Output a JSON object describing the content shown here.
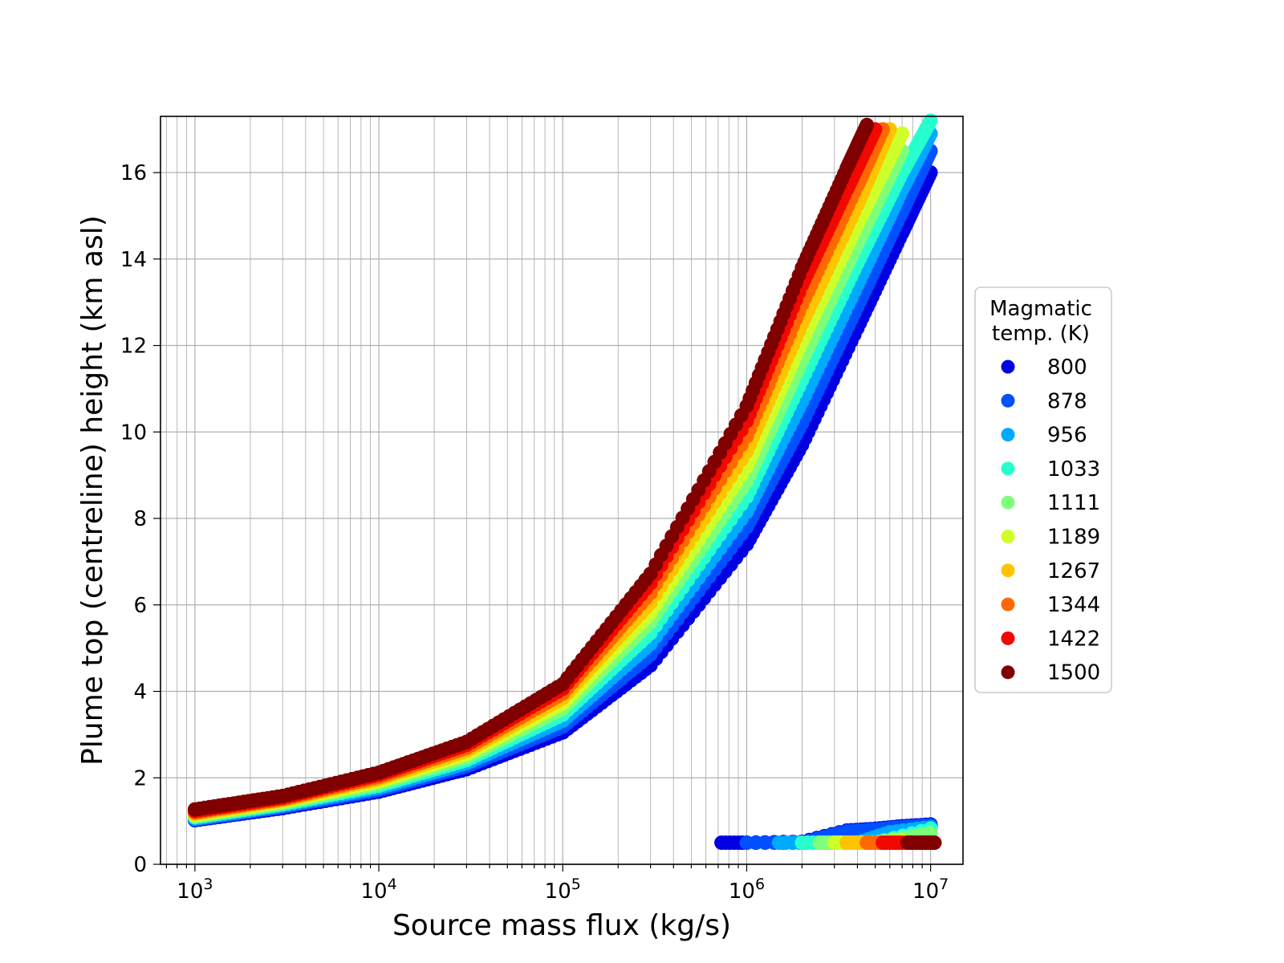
{
  "chart_data": {
    "type": "scatter",
    "xlabel": "Source mass flux (kg/s)",
    "ylabel": "Plume top (centreline) height (km asl)",
    "xscale": "log",
    "xlim": [
      650,
      15000000
    ],
    "ylim": [
      0,
      17.3
    ],
    "x_ticks": [
      {
        "value": 1000,
        "base": "10",
        "exp": "3"
      },
      {
        "value": 10000,
        "base": "10",
        "exp": "4"
      },
      {
        "value": 100000,
        "base": "10",
        "exp": "5"
      },
      {
        "value": 1000000,
        "base": "10",
        "exp": "6"
      },
      {
        "value": 10000000,
        "base": "10",
        "exp": "7"
      }
    ],
    "y_ticks": [
      0,
      2,
      4,
      6,
      8,
      10,
      12,
      14,
      16
    ],
    "grid": "major and minor, both axes",
    "legend": {
      "title_line1": "Magmatic",
      "title_line2": "temp. (K)",
      "placement": "right, outside plot"
    },
    "series": [
      {
        "name": "800",
        "color": "#0000e0",
        "x": [
          1000,
          3000,
          10000,
          30000,
          100000,
          300000,
          1000000,
          2000000,
          4000000,
          7000000,
          10000000
        ],
        "y": [
          1.02,
          1.3,
          1.68,
          2.2,
          3.05,
          4.6,
          7.4,
          9.7,
          12.4,
          14.6,
          16.0
        ],
        "low_x": [
          730000,
          1000000,
          2000000,
          3500000,
          5000000,
          7000000,
          10000000
        ],
        "low_y": [
          0.5,
          0.5,
          0.52,
          0.78,
          0.82,
          0.88,
          0.92
        ]
      },
      {
        "name": "878",
        "color": "#0050ff",
        "x": [
          1000,
          3000,
          10000,
          30000,
          100000,
          300000,
          1000000,
          2000000,
          4000000,
          7000000,
          10000000
        ],
        "y": [
          1.04,
          1.33,
          1.72,
          2.27,
          3.18,
          4.85,
          7.8,
          10.2,
          12.9,
          15.1,
          16.5
        ],
        "low_x": [
          1000000,
          2000000,
          3500000,
          5000000,
          7000000,
          10000000
        ],
        "low_y": [
          0.5,
          0.5,
          0.76,
          0.8,
          0.86,
          0.9
        ]
      },
      {
        "name": "956",
        "color": "#00aaff",
        "x": [
          1000,
          3000,
          10000,
          30000,
          100000,
          300000,
          1000000,
          2000000,
          4000000,
          7000000,
          10000000
        ],
        "y": [
          1.06,
          1.36,
          1.77,
          2.34,
          3.32,
          5.1,
          8.15,
          10.7,
          13.4,
          15.6,
          16.9
        ],
        "low_x": [
          1500000,
          2500000,
          4000000,
          6000000,
          10000000
        ],
        "low_y": [
          0.5,
          0.5,
          0.5,
          0.74,
          0.86
        ]
      },
      {
        "name": "1033",
        "color": "#28ffcf",
        "x": [
          1000,
          3000,
          10000,
          30000,
          100000,
          300000,
          1000000,
          2000000,
          4000000,
          7000000,
          10000000
        ],
        "y": [
          1.09,
          1.39,
          1.82,
          2.41,
          3.46,
          5.35,
          8.5,
          11.2,
          13.9,
          16.0,
          17.2
        ],
        "low_x": [
          2000000,
          3000000,
          5000000,
          10000000
        ],
        "low_y": [
          0.5,
          0.5,
          0.5,
          0.82
        ]
      },
      {
        "name": "1111",
        "color": "#7dff7a",
        "x": [
          1000,
          3000,
          10000,
          30000,
          100000,
          300000,
          1000000,
          2000000,
          4000000,
          7000000
        ],
        "y": [
          1.11,
          1.42,
          1.87,
          2.48,
          3.6,
          5.6,
          8.85,
          11.65,
          14.35,
          16.5
        ],
        "low_x": [
          2500000,
          3500000,
          5000000,
          10000000
        ],
        "low_y": [
          0.5,
          0.5,
          0.5,
          0.72
        ]
      },
      {
        "name": "1189",
        "color": "#ceff29",
        "x": [
          1000,
          3000,
          10000,
          30000,
          100000,
          300000,
          1000000,
          2000000,
          4000000,
          7000000
        ],
        "y": [
          1.14,
          1.45,
          1.92,
          2.55,
          3.72,
          5.82,
          9.2,
          12.1,
          14.8,
          16.9
        ],
        "low_x": [
          3000000,
          4500000,
          7000000
        ],
        "low_y": [
          0.5,
          0.5,
          0.55
        ]
      },
      {
        "name": "1267",
        "color": "#ffc400",
        "x": [
          1000,
          3000,
          10000,
          30000,
          100000,
          300000,
          1000000,
          2000000,
          4000000,
          6000000
        ],
        "y": [
          1.17,
          1.48,
          1.97,
          2.62,
          3.84,
          6.05,
          9.55,
          12.5,
          15.25,
          17.0
        ],
        "low_x": [
          3500000,
          5000000,
          8000000
        ],
        "low_y": [
          0.5,
          0.5,
          0.5
        ]
      },
      {
        "name": "1344",
        "color": "#ff6800",
        "x": [
          1000,
          3000,
          10000,
          30000,
          100000,
          300000,
          1000000,
          2000000,
          4000000,
          5500000
        ],
        "y": [
          1.2,
          1.51,
          2.02,
          2.69,
          3.95,
          6.28,
          9.9,
          12.95,
          15.7,
          17.0
        ],
        "low_x": [
          4500000,
          6000000,
          9000000
        ],
        "low_y": [
          0.5,
          0.5,
          0.5
        ]
      },
      {
        "name": "1422",
        "color": "#f10800",
        "x": [
          1000,
          3000,
          10000,
          30000,
          100000,
          300000,
          1000000,
          2000000,
          3500000,
          5000000
        ],
        "y": [
          1.23,
          1.54,
          2.07,
          2.76,
          4.06,
          6.5,
          10.25,
          13.4,
          15.6,
          17.0
        ],
        "low_x": [
          5500000,
          7000000,
          10000000
        ],
        "low_y": [
          0.5,
          0.5,
          0.5
        ]
      },
      {
        "name": "1500",
        "color": "#800000",
        "x": [
          1000,
          3000,
          10000,
          30000,
          100000,
          300000,
          1000000,
          2000000,
          3500000,
          4500000
        ],
        "y": [
          1.27,
          1.58,
          2.12,
          2.83,
          4.17,
          6.72,
          10.6,
          13.8,
          16.1,
          17.1
        ],
        "low_x": [
          7500000,
          9000000,
          10500000
        ],
        "low_y": [
          0.5,
          0.5,
          0.5
        ]
      }
    ]
  }
}
